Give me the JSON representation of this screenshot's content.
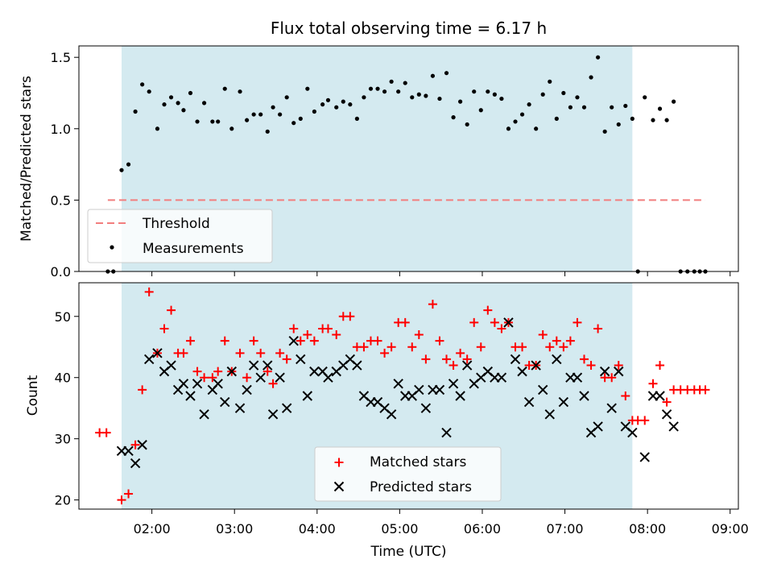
{
  "colors": {
    "shade": "#d4eaf0",
    "threshold": "#f27e7e",
    "measurement": "#000000",
    "matched": "#ff0000",
    "predicted": "#000000"
  },
  "chart_data": [
    {
      "type": "scatter",
      "title": "Flux total observing time = 6.17 h",
      "xlabel": "",
      "ylabel": "Matched/Predicted stars",
      "xlim": [
        "01:07",
        "09:06"
      ],
      "ylim": [
        0,
        1.58
      ],
      "yticks": [
        "0.0",
        "0.5",
        "1.0",
        "1.5"
      ],
      "shaded_region": [
        "01:38",
        "07:49"
      ],
      "threshold": {
        "name": "Threshold",
        "y": 0.5,
        "x": [
          "01:28",
          "08:42"
        ]
      },
      "legend": {
        "position": "lower-left",
        "entries": [
          "Threshold",
          "Measurements"
        ]
      },
      "series": [
        {
          "name": "Measurements",
          "marker": "dot",
          "points": [
            [
              "01:28",
              0
            ],
            [
              "01:32",
              0
            ],
            [
              "01:38",
              0.71
            ],
            [
              "01:43",
              0.75
            ],
            [
              "01:48",
              1.12
            ],
            [
              "01:53",
              1.31
            ],
            [
              "01:58",
              1.26
            ],
            [
              "02:04",
              1.0
            ],
            [
              "02:09",
              1.17
            ],
            [
              "02:14",
              1.22
            ],
            [
              "02:19",
              1.18
            ],
            [
              "02:23",
              1.13
            ],
            [
              "02:28",
              1.25
            ],
            [
              "02:33",
              1.05
            ],
            [
              "02:38",
              1.18
            ],
            [
              "02:44",
              1.05
            ],
            [
              "02:48",
              1.05
            ],
            [
              "02:53",
              1.28
            ],
            [
              "02:58",
              1.0
            ],
            [
              "03:04",
              1.26
            ],
            [
              "03:09",
              1.06
            ],
            [
              "03:14",
              1.1
            ],
            [
              "03:19",
              1.1
            ],
            [
              "03:24",
              0.98
            ],
            [
              "03:28",
              1.15
            ],
            [
              "03:33",
              1.1
            ],
            [
              "03:38",
              1.22
            ],
            [
              "03:43",
              1.04
            ],
            [
              "03:48",
              1.07
            ],
            [
              "03:53",
              1.28
            ],
            [
              "03:58",
              1.12
            ],
            [
              "04:04",
              1.17
            ],
            [
              "04:08",
              1.2
            ],
            [
              "04:14",
              1.15
            ],
            [
              "04:19",
              1.19
            ],
            [
              "04:24",
              1.17
            ],
            [
              "04:29",
              1.07
            ],
            [
              "04:34",
              1.22
            ],
            [
              "04:39",
              1.28
            ],
            [
              "04:44",
              1.28
            ],
            [
              "04:49",
              1.26
            ],
            [
              "04:54",
              1.33
            ],
            [
              "04:59",
              1.26
            ],
            [
              "05:04",
              1.32
            ],
            [
              "05:09",
              1.22
            ],
            [
              "05:14",
              1.24
            ],
            [
              "05:19",
              1.23
            ],
            [
              "05:24",
              1.37
            ],
            [
              "05:29",
              1.21
            ],
            [
              "05:34",
              1.39
            ],
            [
              "05:39",
              1.08
            ],
            [
              "05:44",
              1.19
            ],
            [
              "05:49",
              1.03
            ],
            [
              "05:54",
              1.26
            ],
            [
              "05:59",
              1.13
            ],
            [
              "06:04",
              1.26
            ],
            [
              "06:09",
              1.24
            ],
            [
              "06:14",
              1.21
            ],
            [
              "06:19",
              1.0
            ],
            [
              "06:24",
              1.05
            ],
            [
              "06:29",
              1.1
            ],
            [
              "06:34",
              1.17
            ],
            [
              "06:39",
              1.0
            ],
            [
              "06:44",
              1.24
            ],
            [
              "06:49",
              1.33
            ],
            [
              "06:54",
              1.07
            ],
            [
              "06:59",
              1.25
            ],
            [
              "07:04",
              1.15
            ],
            [
              "07:09",
              1.22
            ],
            [
              "07:14",
              1.15
            ],
            [
              "07:19",
              1.36
            ],
            [
              "07:24",
              1.5
            ],
            [
              "07:29",
              0.98
            ],
            [
              "07:34",
              1.15
            ],
            [
              "07:39",
              1.03
            ],
            [
              "07:44",
              1.16
            ],
            [
              "07:49",
              1.07
            ],
            [
              "07:53",
              0
            ],
            [
              "07:58",
              1.22
            ],
            [
              "08:04",
              1.06
            ],
            [
              "08:09",
              1.14
            ],
            [
              "08:14",
              1.06
            ],
            [
              "08:19",
              1.19
            ],
            [
              "08:24",
              0
            ],
            [
              "08:29",
              0
            ],
            [
              "08:34",
              0
            ],
            [
              "08:38",
              0
            ],
            [
              "08:42",
              0
            ]
          ]
        }
      ]
    },
    {
      "type": "scatter",
      "title": "",
      "xlabel": "Time (UTC)",
      "ylabel": "Count",
      "xlim": [
        "01:07",
        "09:06"
      ],
      "ylim": [
        18.5,
        55.5
      ],
      "yticks": [
        "20",
        "30",
        "40",
        "50"
      ],
      "xticks": [
        "02:00",
        "03:00",
        "04:00",
        "05:00",
        "06:00",
        "07:00",
        "08:00",
        "09:00"
      ],
      "shaded_region": [
        "01:38",
        "07:49"
      ],
      "legend": {
        "position": "lower-center",
        "entries": [
          "Matched stars",
          "Predicted stars"
        ]
      },
      "series": [
        {
          "name": "Matched stars",
          "marker": "plus",
          "points": [
            [
              "01:22",
              31
            ],
            [
              "01:27",
              31
            ],
            [
              "01:38",
              20
            ],
            [
              "01:43",
              21
            ],
            [
              "01:48",
              29
            ],
            [
              "01:53",
              38
            ],
            [
              "01:58",
              54
            ],
            [
              "02:04",
              44
            ],
            [
              "02:09",
              48
            ],
            [
              "02:14",
              51
            ],
            [
              "02:19",
              44
            ],
            [
              "02:23",
              44
            ],
            [
              "02:28",
              46
            ],
            [
              "02:33",
              41
            ],
            [
              "02:38",
              40
            ],
            [
              "02:44",
              40
            ],
            [
              "02:48",
              41
            ],
            [
              "02:53",
              46
            ],
            [
              "02:58",
              41
            ],
            [
              "03:04",
              44
            ],
            [
              "03:09",
              40
            ],
            [
              "03:14",
              46
            ],
            [
              "03:19",
              44
            ],
            [
              "03:24",
              41
            ],
            [
              "03:28",
              39
            ],
            [
              "03:33",
              44
            ],
            [
              "03:38",
              43
            ],
            [
              "03:43",
              48
            ],
            [
              "03:48",
              46
            ],
            [
              "03:53",
              47
            ],
            [
              "03:58",
              46
            ],
            [
              "04:04",
              48
            ],
            [
              "04:08",
              48
            ],
            [
              "04:14",
              47
            ],
            [
              "04:19",
              50
            ],
            [
              "04:24",
              50
            ],
            [
              "04:29",
              45
            ],
            [
              "04:34",
              45
            ],
            [
              "04:39",
              46
            ],
            [
              "04:44",
              46
            ],
            [
              "04:49",
              44
            ],
            [
              "04:54",
              45
            ],
            [
              "04:59",
              49
            ],
            [
              "05:04",
              49
            ],
            [
              "05:09",
              45
            ],
            [
              "05:14",
              47
            ],
            [
              "05:19",
              43
            ],
            [
              "05:24",
              52
            ],
            [
              "05:29",
              46
            ],
            [
              "05:34",
              43
            ],
            [
              "05:39",
              42
            ],
            [
              "05:44",
              44
            ],
            [
              "05:49",
              43
            ],
            [
              "05:54",
              49
            ],
            [
              "05:59",
              45
            ],
            [
              "06:04",
              51
            ],
            [
              "06:09",
              49
            ],
            [
              "06:14",
              48
            ],
            [
              "06:19",
              49
            ],
            [
              "06:24",
              45
            ],
            [
              "06:29",
              45
            ],
            [
              "06:34",
              42
            ],
            [
              "06:39",
              42
            ],
            [
              "06:44",
              47
            ],
            [
              "06:49",
              45
            ],
            [
              "06:54",
              46
            ],
            [
              "06:59",
              45
            ],
            [
              "07:04",
              46
            ],
            [
              "07:09",
              49
            ],
            [
              "07:14",
              43
            ],
            [
              "07:19",
              42
            ],
            [
              "07:24",
              48
            ],
            [
              "07:29",
              40
            ],
            [
              "07:34",
              40
            ],
            [
              "07:39",
              42
            ],
            [
              "07:44",
              37
            ],
            [
              "07:49",
              33
            ],
            [
              "07:53",
              33
            ],
            [
              "07:58",
              33
            ],
            [
              "08:04",
              39
            ],
            [
              "08:09",
              42
            ],
            [
              "08:14",
              36
            ],
            [
              "08:19",
              38
            ],
            [
              "08:24",
              38
            ],
            [
              "08:29",
              38
            ],
            [
              "08:34",
              38
            ],
            [
              "08:38",
              38
            ],
            [
              "08:42",
              38
            ]
          ]
        },
        {
          "name": "Predicted stars",
          "marker": "x",
          "points": [
            [
              "01:38",
              28
            ],
            [
              "01:43",
              28
            ],
            [
              "01:48",
              26
            ],
            [
              "01:53",
              29
            ],
            [
              "01:58",
              43
            ],
            [
              "02:04",
              44
            ],
            [
              "02:09",
              41
            ],
            [
              "02:14",
              42
            ],
            [
              "02:19",
              38
            ],
            [
              "02:23",
              39
            ],
            [
              "02:28",
              37
            ],
            [
              "02:33",
              39
            ],
            [
              "02:38",
              34
            ],
            [
              "02:44",
              38
            ],
            [
              "02:48",
              39
            ],
            [
              "02:53",
              36
            ],
            [
              "02:58",
              41
            ],
            [
              "03:04",
              35
            ],
            [
              "03:09",
              38
            ],
            [
              "03:14",
              42
            ],
            [
              "03:19",
              40
            ],
            [
              "03:24",
              42
            ],
            [
              "03:28",
              34
            ],
            [
              "03:33",
              40
            ],
            [
              "03:38",
              35
            ],
            [
              "03:43",
              46
            ],
            [
              "03:48",
              43
            ],
            [
              "03:53",
              37
            ],
            [
              "03:58",
              41
            ],
            [
              "04:04",
              41
            ],
            [
              "04:08",
              40
            ],
            [
              "04:14",
              41
            ],
            [
              "04:19",
              42
            ],
            [
              "04:24",
              43
            ],
            [
              "04:29",
              42
            ],
            [
              "04:34",
              37
            ],
            [
              "04:39",
              36
            ],
            [
              "04:44",
              36
            ],
            [
              "04:49",
              35
            ],
            [
              "04:54",
              34
            ],
            [
              "04:59",
              39
            ],
            [
              "05:04",
              37
            ],
            [
              "05:09",
              37
            ],
            [
              "05:14",
              38
            ],
            [
              "05:19",
              35
            ],
            [
              "05:24",
              38
            ],
            [
              "05:29",
              38
            ],
            [
              "05:34",
              31
            ],
            [
              "05:39",
              39
            ],
            [
              "05:44",
              37
            ],
            [
              "05:49",
              42
            ],
            [
              "05:54",
              39
            ],
            [
              "05:59",
              40
            ],
            [
              "06:04",
              41
            ],
            [
              "06:09",
              40
            ],
            [
              "06:14",
              40
            ],
            [
              "06:19",
              49
            ],
            [
              "06:24",
              43
            ],
            [
              "06:29",
              41
            ],
            [
              "06:34",
              36
            ],
            [
              "06:39",
              42
            ],
            [
              "06:44",
              38
            ],
            [
              "06:49",
              34
            ],
            [
              "06:54",
              43
            ],
            [
              "06:59",
              36
            ],
            [
              "07:04",
              40
            ],
            [
              "07:09",
              40
            ],
            [
              "07:14",
              37
            ],
            [
              "07:19",
              31
            ],
            [
              "07:24",
              32
            ],
            [
              "07:29",
              41
            ],
            [
              "07:34",
              35
            ],
            [
              "07:39",
              41
            ],
            [
              "07:44",
              32
            ],
            [
              "07:49",
              31
            ],
            [
              "07:58",
              27
            ],
            [
              "08:04",
              37
            ],
            [
              "08:09",
              37
            ],
            [
              "08:14",
              34
            ],
            [
              "08:19",
              32
            ]
          ]
        }
      ]
    }
  ]
}
